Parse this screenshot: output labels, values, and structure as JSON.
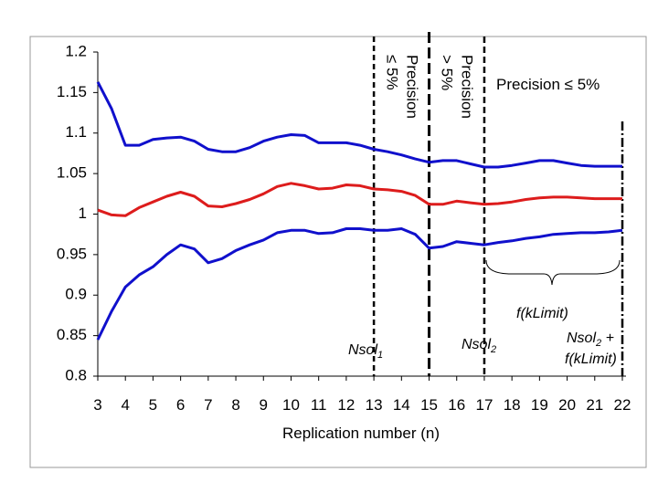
{
  "chart_data": {
    "type": "line",
    "x_label": "Replication number (n)",
    "x": [
      3,
      3.5,
      4,
      4.5,
      5,
      5.5,
      6,
      6.5,
      7,
      7.5,
      8,
      8.5,
      9,
      9.5,
      10,
      10.5,
      11,
      11.5,
      12,
      12.5,
      13,
      13.5,
      14,
      14.5,
      15,
      15.5,
      16,
      16.5,
      17,
      17.5,
      18,
      18.5,
      19,
      19.5,
      20,
      20.5,
      21,
      21.5,
      22
    ],
    "series": [
      {
        "color": "#1010cc",
        "values": [
          1.163,
          1.13,
          1.085,
          1.085,
          1.092,
          1.094,
          1.095,
          1.09,
          1.08,
          1.077,
          1.077,
          1.082,
          1.09,
          1.095,
          1.098,
          1.097,
          1.088,
          1.088,
          1.088,
          1.085,
          1.08,
          1.077,
          1.073,
          1.068,
          1.064,
          1.066,
          1.066,
          1.062,
          1.058,
          1.058,
          1.06,
          1.063,
          1.066,
          1.066,
          1.063,
          1.06,
          1.059,
          1.059,
          1.059
        ]
      },
      {
        "color": "#dd1c1c",
        "values": [
          1.005,
          0.999,
          0.998,
          1.008,
          1.015,
          1.022,
          1.027,
          1.022,
          1.01,
          1.009,
          1.013,
          1.018,
          1.025,
          1.034,
          1.038,
          1.035,
          1.031,
          1.032,
          1.036,
          1.035,
          1.031,
          1.03,
          1.028,
          1.023,
          1.012,
          1.012,
          1.016,
          1.014,
          1.012,
          1.013,
          1.015,
          1.018,
          1.02,
          1.021,
          1.021,
          1.02,
          1.019,
          1.019,
          1.019
        ]
      },
      {
        "color": "#1010cc",
        "values": [
          0.845,
          0.88,
          0.91,
          0.925,
          0.935,
          0.95,
          0.962,
          0.957,
          0.94,
          0.945,
          0.955,
          0.962,
          0.968,
          0.977,
          0.98,
          0.98,
          0.976,
          0.977,
          0.982,
          0.982,
          0.98,
          0.98,
          0.982,
          0.975,
          0.958,
          0.96,
          0.966,
          0.964,
          0.962,
          0.965,
          0.967,
          0.97,
          0.972,
          0.975,
          0.976,
          0.977,
          0.977,
          0.978,
          0.98
        ]
      }
    ],
    "xlim": [
      3,
      22
    ],
    "xticks": [
      3,
      4,
      5,
      6,
      7,
      8,
      9,
      10,
      11,
      12,
      13,
      14,
      15,
      16,
      17,
      18,
      19,
      20,
      21,
      22
    ],
    "ylim": [
      0.8,
      1.2
    ],
    "yticks": [
      0.8,
      0.85,
      0.9,
      0.95,
      1,
      1.05,
      1.1,
      1.15,
      1.2
    ],
    "reference_lines": [
      {
        "x": 13,
        "dash": "6,4",
        "width": 2.5
      },
      {
        "x": 15,
        "dash": "12,5",
        "width": 3
      },
      {
        "x": 17,
        "dash": "7,4",
        "width": 2.5
      },
      {
        "x": 22,
        "dash": "10,3,2,3",
        "width": 2.5
      }
    ],
    "annotations": {
      "precision_a": [
        "Precision",
        "≤ 5%"
      ],
      "precision_b": [
        "Precision",
        "> 5%"
      ],
      "precision_c": "Precision ≤ 5%",
      "f_klimit": "f(kLimit)",
      "nsol1": {
        "text": "Nsol",
        "sub": "1"
      },
      "nsol2": {
        "text": "Nsol",
        "sub": "2"
      },
      "nsol2_f": {
        "text": "Nsol",
        "sub": "2",
        "after": " +",
        "line2": "f(kLimit)"
      }
    }
  }
}
